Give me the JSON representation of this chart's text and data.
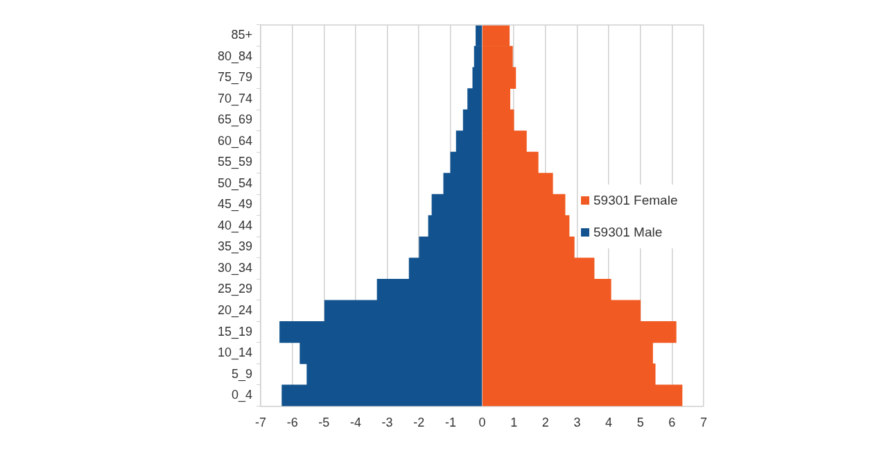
{
  "chart_data": {
    "type": "bar",
    "orientation": "horizontal",
    "stacked": true,
    "categories": [
      "85+",
      "80_84",
      "75_79",
      "70_74",
      "65_69",
      "60_64",
      "55_59",
      "50_54",
      "45_49",
      "40_44",
      "35_39",
      "30_34",
      "25_29",
      "20_24",
      "15_19",
      "10_14",
      "5_9",
      "0_4"
    ],
    "series": [
      {
        "name": "59301 Female",
        "color": "#f15a22",
        "values": [
          0.86,
          0.96,
          1.06,
          0.88,
          1.0,
          1.4,
          1.77,
          2.23,
          2.62,
          2.75,
          2.91,
          3.54,
          4.07,
          5.0,
          6.13,
          5.39,
          5.47,
          6.32
        ]
      },
      {
        "name": "59301 Male",
        "color": "#12538f",
        "values": [
          -0.2,
          -0.25,
          -0.3,
          -0.46,
          -0.6,
          -0.82,
          -1.0,
          -1.22,
          -1.59,
          -1.7,
          -1.99,
          -2.31,
          -3.32,
          -4.98,
          -6.4,
          -5.76,
          -5.54,
          -6.33
        ]
      }
    ],
    "xlim": [
      -7,
      7
    ],
    "xticks": [
      -7,
      -6,
      -5,
      -4,
      -3,
      -2,
      -1,
      0,
      1,
      2,
      3,
      4,
      5,
      6,
      7
    ],
    "grid": "x",
    "legend": "right"
  }
}
